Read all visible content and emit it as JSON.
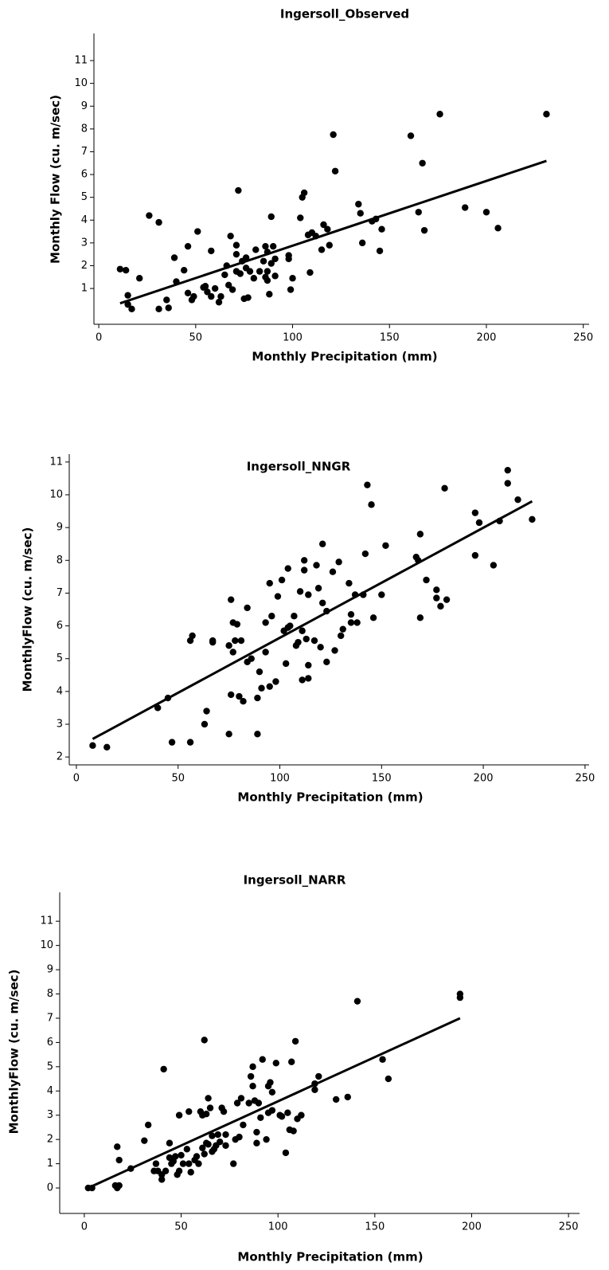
{
  "chart_data": [
    {
      "type": "scatter",
      "title": "Ingersoll_Observed",
      "x_label": "Monthly Precipitation (mm)",
      "y_label": "Monthly Flow (cu. m/sec)",
      "color": "#000000",
      "xlim": [
        -2.5,
        253
      ],
      "ylim": [
        -0.57,
        12.19
      ],
      "xticks": [
        0,
        50,
        100,
        150,
        200,
        250
      ],
      "yticks": [
        1,
        2,
        3,
        4,
        5,
        6,
        7,
        8,
        9,
        10,
        11
      ],
      "x": [
        11,
        14,
        15,
        15,
        17,
        21,
        26,
        31,
        31,
        35,
        36,
        39,
        40,
        44,
        46,
        46,
        48,
        49,
        51,
        54,
        55,
        56,
        58,
        58,
        60,
        62,
        63,
        65,
        66,
        67,
        68,
        69,
        71,
        71,
        71,
        72,
        73,
        74,
        75,
        76,
        76,
        77,
        78,
        80,
        81,
        83,
        85,
        86,
        86,
        87,
        87,
        88,
        87,
        89,
        89,
        90,
        91,
        91,
        98,
        98,
        99,
        100,
        104,
        105,
        106,
        108,
        109,
        110,
        112,
        115,
        116,
        118,
        119,
        121,
        122,
        134,
        135,
        136,
        141,
        143,
        145,
        146,
        161,
        165,
        167,
        168,
        176,
        189,
        200,
        206,
        231
      ],
      "y": [
        1.85,
        1.8,
        0.7,
        0.3,
        0.1,
        1.45,
        4.2,
        3.9,
        0.1,
        0.5,
        0.15,
        2.35,
        1.3,
        1.8,
        2.85,
        0.8,
        0.5,
        0.65,
        3.5,
        1.05,
        1.1,
        0.85,
        2.65,
        0.65,
        1.0,
        0.4,
        0.65,
        1.6,
        2.0,
        1.15,
        3.3,
        0.95,
        1.75,
        2.5,
        2.9,
        5.3,
        1.65,
        2.2,
        0.55,
        2.35,
        1.9,
        0.6,
        1.75,
        1.45,
        2.7,
        1.75,
        2.2,
        2.85,
        1.5,
        1.75,
        1.35,
        0.75,
        2.6,
        2.1,
        4.15,
        2.85,
        1.55,
        2.3,
        2.45,
        2.3,
        0.95,
        1.45,
        4.1,
        5.0,
        5.2,
        3.35,
        1.7,
        3.45,
        3.3,
        2.7,
        3.8,
        3.6,
        2.9,
        7.75,
        6.15,
        4.7,
        4.3,
        3.0,
        3.95,
        4.05,
        2.65,
        3.6,
        7.7,
        4.35,
        6.5,
        3.55,
        8.65,
        4.55,
        4.35,
        3.65,
        8.65
      ],
      "trendline": {
        "x": [
          11,
          231
        ],
        "y": [
          0.35,
          6.6
        ]
      }
    },
    {
      "type": "scatter",
      "title": "Ingersoll_NNGR",
      "x_label": "Monthly Precipitation (mm)",
      "y_label": "MonthlyFlow (cu. m/sec)",
      "color": "#000000",
      "xlim": [
        -3.5,
        252
      ],
      "ylim": [
        1.76,
        11.24
      ],
      "xticks": [
        0,
        50,
        100,
        150,
        200,
        250
      ],
      "yticks": [
        2,
        3,
        4,
        5,
        6,
        7,
        8,
        9,
        10,
        11
      ],
      "x": [
        8,
        15,
        40,
        45,
        47,
        56,
        56,
        57,
        63,
        64,
        67,
        67,
        75,
        75,
        76,
        76,
        77,
        77,
        78,
        79,
        80,
        81,
        82,
        84,
        84,
        86,
        89,
        89,
        90,
        91,
        93,
        93,
        95,
        95,
        96,
        98,
        99,
        101,
        102,
        103,
        104,
        104,
        105,
        107,
        108,
        109,
        110,
        111,
        111,
        112,
        112,
        113,
        114,
        114,
        114,
        117,
        118,
        119,
        120,
        121,
        121,
        123,
        123,
        126,
        127,
        129,
        130,
        131,
        134,
        135,
        135,
        137,
        138,
        141,
        142,
        143,
        145,
        146,
        150,
        152,
        167,
        168,
        169,
        169,
        172,
        177,
        177,
        179,
        181,
        182,
        196,
        196,
        198,
        205,
        208,
        212,
        212,
        217,
        224
      ],
      "y": [
        2.35,
        2.3,
        3.5,
        3.8,
        2.45,
        2.45,
        5.55,
        5.7,
        3.0,
        3.4,
        5.5,
        5.55,
        5.4,
        2.7,
        6.8,
        3.9,
        6.1,
        5.2,
        5.55,
        6.05,
        3.85,
        5.55,
        3.7,
        6.55,
        4.9,
        5.0,
        3.8,
        2.7,
        4.6,
        4.1,
        6.1,
        5.2,
        7.3,
        4.15,
        6.3,
        4.3,
        6.9,
        7.4,
        5.85,
        4.85,
        7.75,
        5.95,
        6.0,
        6.3,
        5.4,
        5.5,
        7.05,
        5.85,
        4.35,
        8.0,
        7.7,
        5.6,
        6.95,
        4.8,
        4.4,
        5.55,
        7.85,
        7.15,
        5.35,
        8.5,
        6.7,
        6.45,
        4.9,
        7.65,
        5.25,
        7.95,
        5.7,
        5.9,
        7.3,
        6.1,
        6.35,
        6.95,
        6.1,
        6.95,
        8.2,
        10.3,
        9.7,
        6.25,
        6.95,
        8.45,
        8.1,
        8.0,
        8.8,
        6.25,
        7.4,
        6.85,
        7.1,
        6.6,
        10.2,
        6.8,
        8.15,
        9.45,
        9.15,
        7.85,
        9.2,
        10.75,
        10.35,
        9.85,
        9.25
      ],
      "trendline": {
        "x": [
          8,
          224
        ],
        "y": [
          2.55,
          9.8
        ]
      }
    },
    {
      "type": "scatter",
      "title": "Ingersoll_NARR",
      "x_label": "Monthly Precipitation (mm)",
      "y_label": "MonthlyFlow (cu. m/sec)",
      "color": "#000000",
      "xlim": [
        -12.7,
        255.7
      ],
      "ylim": [
        -1.05,
        12.19
      ],
      "xticks": [
        0,
        50,
        100,
        150,
        200,
        250
      ],
      "yticks": [
        0,
        1,
        2,
        3,
        4,
        5,
        6,
        7,
        8,
        9,
        10,
        11
      ],
      "x": [
        2,
        4,
        16,
        17,
        17,
        18,
        18,
        24,
        31,
        33,
        36,
        37,
        38,
        40,
        40,
        41,
        42,
        44,
        44,
        45,
        46,
        47,
        48,
        49,
        49,
        50,
        51,
        53,
        54,
        54,
        55,
        57,
        58,
        59,
        60,
        61,
        61,
        62,
        62,
        63,
        63,
        64,
        64,
        65,
        66,
        66,
        67,
        68,
        69,
        70,
        71,
        72,
        73,
        73,
        77,
        78,
        79,
        80,
        81,
        82,
        85,
        86,
        87,
        87,
        88,
        89,
        89,
        90,
        91,
        92,
        94,
        95,
        95,
        96,
        97,
        97,
        99,
        101,
        102,
        104,
        105,
        106,
        107,
        108,
        109,
        110,
        112,
        119,
        119,
        121,
        130,
        136,
        141,
        154,
        157,
        194,
        194
      ],
      "y": [
        0.0,
        0.0,
        0.1,
        0.0,
        1.7,
        1.15,
        0.1,
        0.8,
        1.95,
        2.6,
        0.7,
        1.0,
        0.7,
        0.55,
        0.35,
        4.9,
        0.7,
        1.85,
        1.25,
        1.0,
        1.1,
        1.3,
        0.55,
        3.0,
        0.7,
        1.35,
        1.0,
        1.6,
        3.15,
        1.0,
        0.65,
        1.15,
        1.3,
        1.0,
        3.15,
        1.65,
        3.0,
        6.1,
        1.4,
        3.05,
        1.85,
        3.7,
        1.8,
        3.3,
        2.15,
        1.5,
        1.6,
        1.75,
        2.2,
        1.9,
        3.3,
        3.15,
        1.75,
        2.2,
        1.0,
        2.0,
        3.5,
        2.1,
        3.7,
        2.6,
        3.5,
        4.6,
        4.2,
        5.0,
        3.6,
        1.85,
        2.3,
        3.5,
        2.9,
        5.3,
        2.0,
        4.2,
        3.1,
        4.35,
        3.2,
        3.95,
        5.15,
        3.0,
        2.95,
        1.45,
        3.1,
        2.4,
        5.2,
        2.35,
        6.05,
        2.85,
        3.0,
        4.05,
        4.3,
        4.6,
        3.65,
        3.75,
        7.7,
        5.3,
        4.5,
        7.85,
        8.0
      ],
      "trendline": {
        "x": [
          2,
          194
        ],
        "y": [
          0.0,
          7.0
        ]
      }
    }
  ]
}
